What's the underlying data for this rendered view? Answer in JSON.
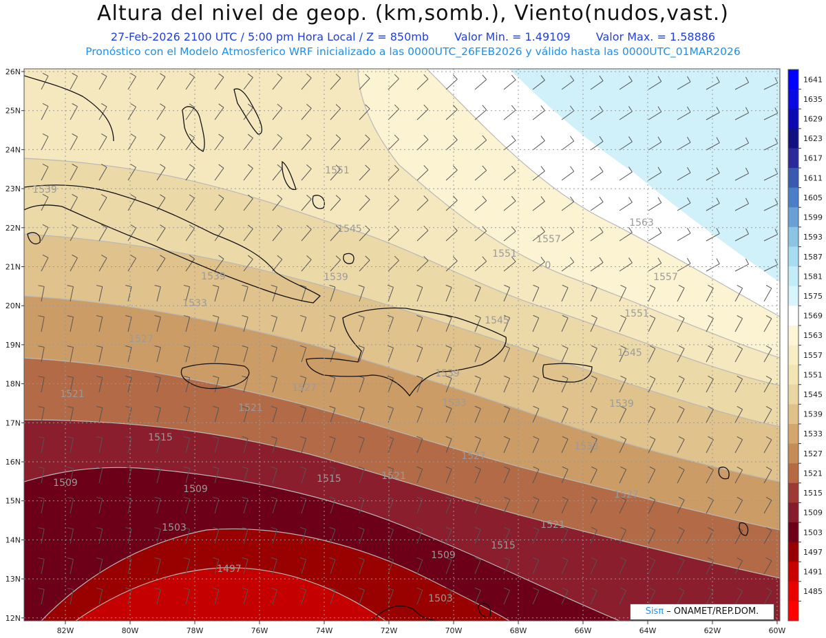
{
  "header": {
    "title": "Altura del nivel de geop. (km,somb.), Viento(nudos,vast.)",
    "valid_time": "27-Feb-2026  2100 UTC / 5:00 pm Hora Local / Z = 850mb",
    "min_value": "Valor Min. = 1.49109",
    "max_value": "Valor Max. = 1.58886",
    "model_info": "Pronóstico con el Modelo Atmosferico WRF inicializado a las 0000UTC_26FEB2026 y válido hasta las  0000UTC_01MAR2026"
  },
  "map": {
    "lon_labels": [
      "82W",
      "80W",
      "78W",
      "76W",
      "74W",
      "72W",
      "70W",
      "68W",
      "66W",
      "64W",
      "62W",
      "60W"
    ],
    "lat_labels": [
      "26N",
      "25N",
      "24N",
      "23N",
      "22N",
      "21N",
      "20N",
      "19N",
      "18N",
      "17N",
      "16N",
      "15N",
      "14N",
      "13N",
      "12N"
    ],
    "contour_labels": [
      {
        "text": "1551"
      },
      {
        "text": "1539"
      },
      {
        "text": "1545"
      },
      {
        "text": "1563"
      },
      {
        "text": "1557"
      },
      {
        "text": "1551"
      },
      {
        "text": "0"
      },
      {
        "text": "1557"
      },
      {
        "text": "1539"
      },
      {
        "text": "1539"
      },
      {
        "text": "1533"
      },
      {
        "text": "1545"
      },
      {
        "text": "1551"
      },
      {
        "text": "1545"
      },
      {
        "text": "1527"
      },
      {
        "text": "1539"
      },
      {
        "text": "1521"
      },
      {
        "text": "1527"
      },
      {
        "text": "1533"
      },
      {
        "text": "1539"
      },
      {
        "text": "1521"
      },
      {
        "text": "1515"
      },
      {
        "text": "1527"
      },
      {
        "text": "1533"
      },
      {
        "text": "1509"
      },
      {
        "text": "1509"
      },
      {
        "text": "1515"
      },
      {
        "text": "1521"
      },
      {
        "text": "1527"
      },
      {
        "text": "1503"
      },
      {
        "text": "1521"
      },
      {
        "text": "1509"
      },
      {
        "text": "1515"
      },
      {
        "text": "1497"
      },
      {
        "text": "1503"
      }
    ]
  },
  "colorbar": {
    "levels": [
      "1641",
      "1635",
      "1629",
      "1623",
      "1617",
      "1611",
      "1605",
      "1599",
      "1593",
      "1587",
      "1581",
      "1575",
      "1569",
      "1563",
      "1557",
      "1551",
      "1545",
      "1539",
      "1533",
      "1527",
      "1521",
      "1515",
      "1509",
      "1503",
      "1497",
      "1491",
      "1485"
    ],
    "colors": [
      "#0000ff",
      "#0a0ae0",
      "#0a0ab0",
      "#10107e",
      "#2a2a9a",
      "#3a5ab0",
      "#4a7ec6",
      "#6aa0d4",
      "#8cc4e4",
      "#a8dcf0",
      "#c4ecf8",
      "#d8f4fc",
      "#ffffff",
      "#fdf6d6",
      "#f8eec6",
      "#f3e4b4",
      "#ead6a2",
      "#dfc28a",
      "#d2a66c",
      "#c48c56",
      "#b56a44",
      "#9c3a34",
      "#851c2c",
      "#6b0018",
      "#960000",
      "#c80000",
      "#e80000",
      "#ff0000"
    ]
  },
  "credit": {
    "brand": "Sisπ",
    "text": " – ONAMET/REP.DOM."
  }
}
